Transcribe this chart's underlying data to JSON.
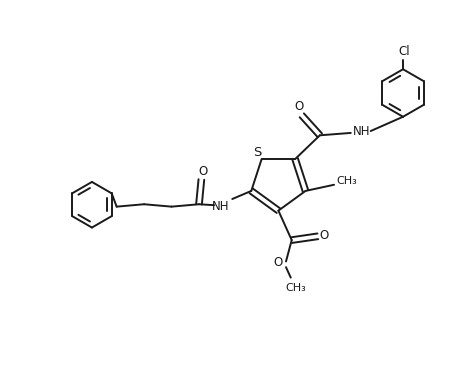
{
  "background_color": "#ffffff",
  "line_color": "#1a1a1a",
  "line_width": 1.4,
  "font_size": 8.5,
  "figsize": [
    4.57,
    3.69
  ],
  "dpi": 100,
  "xlim": [
    0,
    9.5
  ],
  "ylim": [
    0,
    7.5
  ]
}
